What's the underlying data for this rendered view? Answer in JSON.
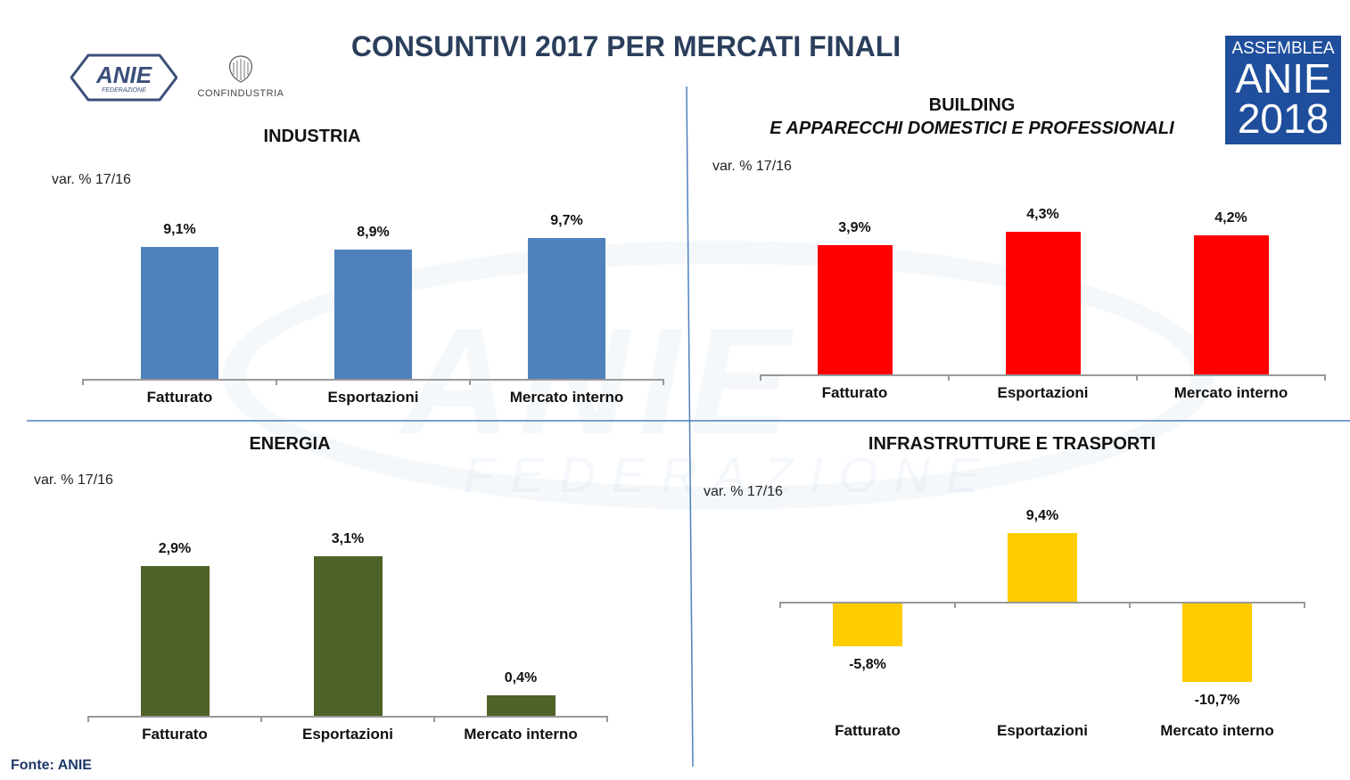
{
  "header": {
    "title": "CONSUNTIVI 2017 PER MERCATI FINALI",
    "logo_anie": "ANIE",
    "logo_anie_sub": "FEDERAZIONE",
    "logo_confindustria": "CONFINDUSTRIA",
    "badge_line1": "ASSEMBLEA",
    "badge_line2": "ANIE",
    "badge_line3": "2018"
  },
  "watermark": {
    "text": "ANIE",
    "sub": "FEDERAZIONE"
  },
  "footer": {
    "source": "Fonte: ANIE"
  },
  "colors": {
    "industria": "#4f81bd",
    "building": "#ff0000",
    "energia": "#4f6228",
    "infrastrutture": "#ffcc00",
    "title": "#2b3f5c"
  },
  "chart_data": [
    {
      "type": "bar",
      "title": "INDUSTRIA",
      "subtitle": "",
      "ylabel": "var. % 17/16",
      "categories": [
        "Fatturato",
        "Esportazioni",
        "Mercato interno"
      ],
      "values": [
        9.1,
        8.9,
        9.7
      ],
      "labels": [
        "9,1%",
        "8,9%",
        "9,7%"
      ]
    },
    {
      "type": "bar",
      "title": "BUILDING",
      "subtitle": "E APPARECCHI DOMESTICI E PROFESSIONALI",
      "ylabel": "var. % 17/16",
      "categories": [
        "Fatturato",
        "Esportazioni",
        "Mercato interno"
      ],
      "values": [
        3.9,
        4.3,
        4.2
      ],
      "labels": [
        "3,9%",
        "4,3%",
        "4,2%"
      ]
    },
    {
      "type": "bar",
      "title": "ENERGIA",
      "subtitle": "",
      "ylabel": "var. % 17/16",
      "categories": [
        "Fatturato",
        "Esportazioni",
        "Mercato interno"
      ],
      "values": [
        2.9,
        3.1,
        0.4
      ],
      "labels": [
        "2,9%",
        "3,1%",
        "0,4%"
      ]
    },
    {
      "type": "bar",
      "title": "INFRASTRUTTURE E TRASPORTI",
      "subtitle": "",
      "ylabel": "var. % 17/16",
      "categories": [
        "Fatturato",
        "Esportazioni",
        "Mercato interno"
      ],
      "values": [
        -5.8,
        9.4,
        -10.7
      ],
      "labels": [
        "-5,8%",
        "9,4%",
        "-10,7%"
      ]
    }
  ]
}
